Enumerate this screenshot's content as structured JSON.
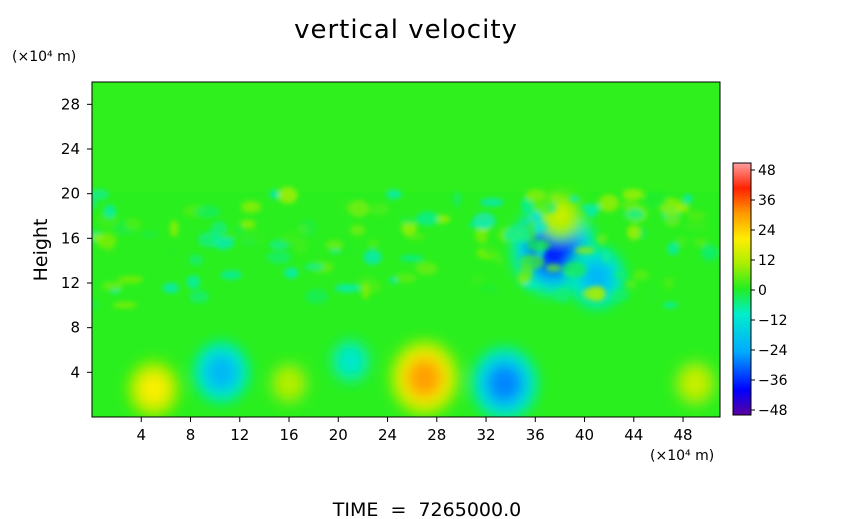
{
  "chart_data": {
    "type": "heatmap",
    "title": "vertical velocity",
    "ylabel": "Height",
    "xunit": "(×10⁴ m)",
    "yunit": "(×10⁴ m)",
    "footer": "TIME  =  7265000.0",
    "xlim": [
      0,
      51
    ],
    "ylim": [
      0,
      30
    ],
    "xticks": [
      "4",
      "8",
      "12",
      "16",
      "20",
      "24",
      "28",
      "32",
      "36",
      "40",
      "44",
      "48"
    ],
    "yticks": [
      "4",
      "8",
      "12",
      "16",
      "20",
      "24",
      "28"
    ],
    "colorbar": {
      "range": [
        -48,
        48
      ],
      "ticks": [
        "48",
        "36",
        "24",
        "12",
        "0",
        "−12",
        "−24",
        "−36",
        "−48"
      ]
    },
    "features": [
      {
        "x": 27,
        "y": 3.5,
        "value": 30
      },
      {
        "x": 33.5,
        "y": 3,
        "value": -28
      },
      {
        "x": 37.5,
        "y": 15,
        "value": -38
      },
      {
        "x": 10.5,
        "y": 4,
        "value": -22
      },
      {
        "x": 41,
        "y": 12.5,
        "value": -22
      },
      {
        "x": 5,
        "y": 2.5,
        "value": 20
      },
      {
        "x": 16,
        "y": 3,
        "value": 12
      },
      {
        "x": 49,
        "y": 3,
        "value": 14
      },
      {
        "x": 38,
        "y": 18,
        "value": 14
      },
      {
        "x": 21,
        "y": 5,
        "value": -12
      }
    ]
  }
}
